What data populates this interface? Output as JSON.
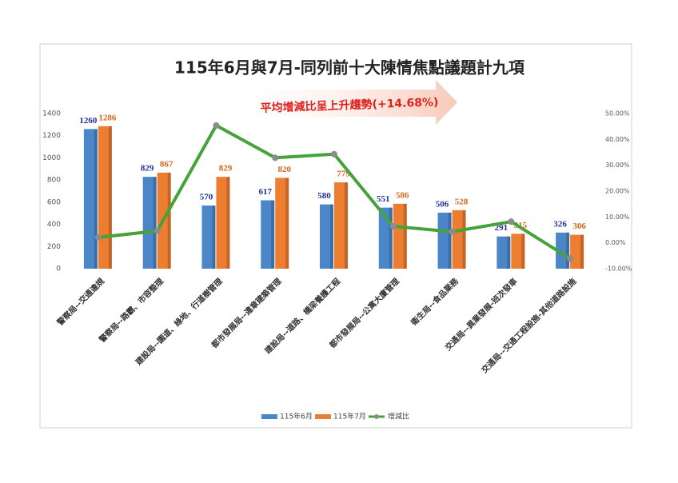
{
  "chart_data": {
    "type": "bar-line",
    "title": "115年6月與7月-同列前十大陳情焦點議題計九項",
    "annotation": "平均增減比呈上升趨勢(+14.68%)",
    "categories": [
      "警察局--交通違規",
      "警察局--路霸、市容整理",
      "建設局--園道、綠地、行道樹管理",
      "都市發展局--違章建築管理",
      "建設局--道路、橋梁養護工程",
      "都市發展局--公寓大廈管理",
      "衛生局--食品業務",
      "交通局--異業發展-班次發車",
      "交通局--交通工程設施-其他道路設施"
    ],
    "series": [
      {
        "name": "115年6月",
        "color": "#4a86c8",
        "label_color": "#1f2f9a",
        "type": "bar",
        "values": [
          1260,
          829,
          570,
          617,
          580,
          551,
          506,
          291,
          326
        ]
      },
      {
        "name": "115年7月",
        "color": "#ed7d31",
        "label_color": "#d9651a",
        "type": "bar",
        "values": [
          1286,
          867,
          829,
          820,
          779,
          586,
          528,
          315,
          306
        ]
      },
      {
        "name": "增減比",
        "color": "#45a33a",
        "marker_color": "#8c8c8c",
        "type": "line",
        "axis": "y2",
        "values": [
          2.1,
          4.6,
          45.4,
          32.9,
          34.3,
          6.4,
          4.3,
          8.2,
          -6.1
        ]
      }
    ],
    "ylim": [
      0,
      1400
    ],
    "yticks": [
      0,
      200,
      400,
      600,
      800,
      1000,
      1200,
      1400
    ],
    "y2lim": [
      -10,
      50
    ],
    "y2ticks": [
      {
        "value": -10,
        "label": "-10.00%"
      },
      {
        "value": 0,
        "label": "0.00%"
      },
      {
        "value": 10,
        "label": "10.00%"
      },
      {
        "value": 20,
        "label": "20.00%"
      },
      {
        "value": 30,
        "label": "30.00%"
      },
      {
        "value": 40,
        "label": "40.00%"
      },
      {
        "value": 50,
        "label": "50.00%"
      }
    ],
    "legend": "bottom"
  }
}
